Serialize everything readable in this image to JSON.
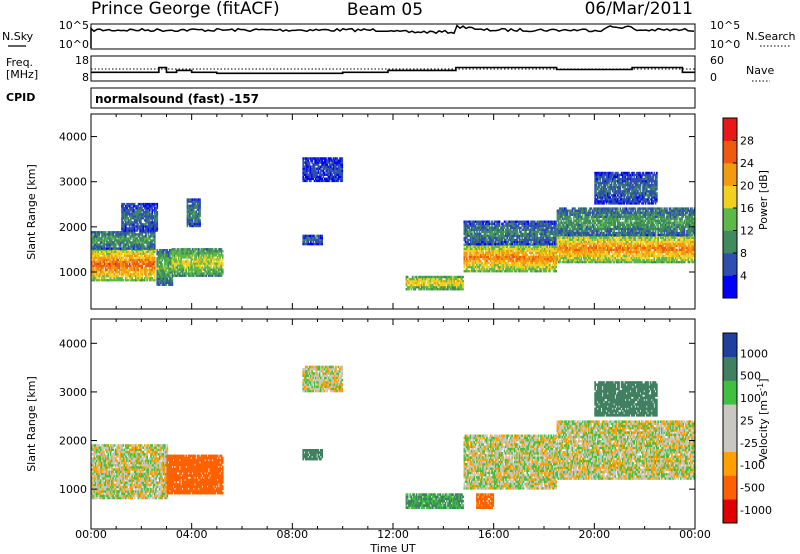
{
  "header": {
    "station": "Prince George (fitACF)",
    "beam": "Beam 05",
    "date": "06/Mar/2011"
  },
  "noise_panel": {
    "left_label": "N.Sky",
    "left_ticks": [
      "10^5",
      "10^0"
    ],
    "right_label": "N.Search",
    "right_ticks": [
      "10^5",
      "10^0"
    ]
  },
  "freq_panel": {
    "left_label_line1": "Freq.",
    "left_label_line2": "[MHz]",
    "left_ticks": [
      "18",
      "8"
    ],
    "right_label": "Nave",
    "right_ticks": [
      "60",
      "0"
    ]
  },
  "cpid": {
    "label": "CPID",
    "value": "normalsound (fast) -157"
  },
  "colors": {
    "power": [
      "#0000ff",
      "#2f4fb0",
      "#3f8a5f",
      "#5cb848",
      "#f2d020",
      "#f29a10",
      "#ee5a10",
      "#e81818"
    ],
    "velocity": [
      "#e00000",
      "#ff6000",
      "#ffa000",
      "#c8c8c0",
      "#c8c8c0",
      "#40c040",
      "#408060",
      "#2040a0"
    ],
    "ground_scatter": "#c8c8c0"
  },
  "chart_data": [
    {
      "type": "heatmap",
      "name": "power",
      "xlabel": "",
      "ylabel": "Slant Range [km]",
      "xlim": [
        0,
        24
      ],
      "ylim": [
        180,
        4500
      ],
      "yticks": [
        "1000",
        "2000",
        "3000",
        "4000"
      ],
      "colorbar": {
        "label": "Power [dB]",
        "ticks": [
          "4",
          "8",
          "12",
          "16",
          "20",
          "24",
          "28"
        ],
        "range": [
          0,
          32
        ]
      },
      "regions": [
        {
          "t": [
            0.0,
            2.5
          ],
          "r": [
            800,
            1500
          ],
          "level": 26
        },
        {
          "t": [
            0.0,
            2.5
          ],
          "r": [
            1500,
            1900
          ],
          "level": 12
        },
        {
          "t": [
            1.2,
            2.6
          ],
          "r": [
            1900,
            2500
          ],
          "level": 8
        },
        {
          "t": [
            2.6,
            3.2
          ],
          "r": [
            700,
            1500
          ],
          "level": 14
        },
        {
          "t": [
            3.2,
            5.2
          ],
          "r": [
            900,
            1500
          ],
          "level": 18
        },
        {
          "t": [
            3.8,
            4.3
          ],
          "r": [
            2000,
            2600
          ],
          "level": 10
        },
        {
          "t": [
            8.4,
            9.2
          ],
          "r": [
            1600,
            1800
          ],
          "level": 8
        },
        {
          "t": [
            8.4,
            10.0
          ],
          "r": [
            3000,
            3500
          ],
          "level": 6
        },
        {
          "t": [
            12.5,
            14.8
          ],
          "r": [
            600,
            900
          ],
          "level": 20
        },
        {
          "t": [
            14.8,
            18.5
          ],
          "r": [
            1000,
            1600
          ],
          "level": 24
        },
        {
          "t": [
            14.8,
            18.5
          ],
          "r": [
            1600,
            2100
          ],
          "level": 10
        },
        {
          "t": [
            18.5,
            24.0
          ],
          "r": [
            1200,
            1800
          ],
          "level": 24
        },
        {
          "t": [
            18.5,
            24.0
          ],
          "r": [
            1800,
            2400
          ],
          "level": 12
        },
        {
          "t": [
            20.0,
            22.5
          ],
          "r": [
            2500,
            3200
          ],
          "level": 8
        }
      ]
    },
    {
      "type": "heatmap",
      "name": "velocity",
      "xlabel": "Time UT",
      "ylabel": "Slant Range [km]",
      "xlim": [
        0,
        24
      ],
      "ylim": [
        180,
        4500
      ],
      "xticks": [
        "00:00",
        "04:00",
        "08:00",
        "12:00",
        "16:00",
        "20:00",
        "00:00"
      ],
      "yticks": [
        "1000",
        "2000",
        "3000",
        "4000"
      ],
      "colorbar": {
        "label": "Velocity [m s^-1]",
        "ticks": [
          "1000",
          "500",
          "100",
          "25",
          "-25",
          "-100",
          "-500",
          "-1000"
        ]
      },
      "regions": [
        {
          "t": [
            0.0,
            3.0
          ],
          "r": [
            800,
            1900
          ],
          "velocity": 0
        },
        {
          "t": [
            3.0,
            5.2
          ],
          "r": [
            900,
            1700
          ],
          "velocity": -300
        },
        {
          "t": [
            8.4,
            9.2
          ],
          "r": [
            1600,
            1800
          ],
          "velocity": 200
        },
        {
          "t": [
            8.4,
            10.0
          ],
          "r": [
            3000,
            3500
          ],
          "velocity": 0
        },
        {
          "t": [
            12.5,
            14.8
          ],
          "r": [
            600,
            900
          ],
          "velocity": 100
        },
        {
          "t": [
            14.8,
            18.5
          ],
          "r": [
            1000,
            2100
          ],
          "velocity": 0
        },
        {
          "t": [
            15.3,
            16.0
          ],
          "r": [
            600,
            900
          ],
          "velocity": -150
        },
        {
          "t": [
            18.5,
            24.0
          ],
          "r": [
            1200,
            2400
          ],
          "velocity": 0
        },
        {
          "t": [
            20.0,
            22.5
          ],
          "r": [
            2500,
            3200
          ],
          "velocity": 400
        }
      ]
    },
    {
      "type": "line",
      "name": "frequency",
      "ylim": [
        8,
        18
      ],
      "series": [
        {
          "x": [
            0,
            2.7,
            2.7,
            3.0,
            3.0,
            3.4,
            3.4,
            4.0,
            4.0,
            5.0,
            5.0,
            10.0,
            10.0,
            11.8,
            11.8,
            14.5,
            14.5,
            18.5,
            18.5,
            21.5,
            21.5,
            23.5,
            23.5,
            24
          ],
          "y": [
            11,
            11,
            13.5,
            13.5,
            11,
            11,
            12,
            12,
            11,
            11,
            10.5,
            10.5,
            11,
            11,
            12,
            12,
            13.5,
            13.5,
            12.5,
            12.5,
            13.5,
            13.5,
            11,
            11
          ]
        }
      ]
    }
  ]
}
